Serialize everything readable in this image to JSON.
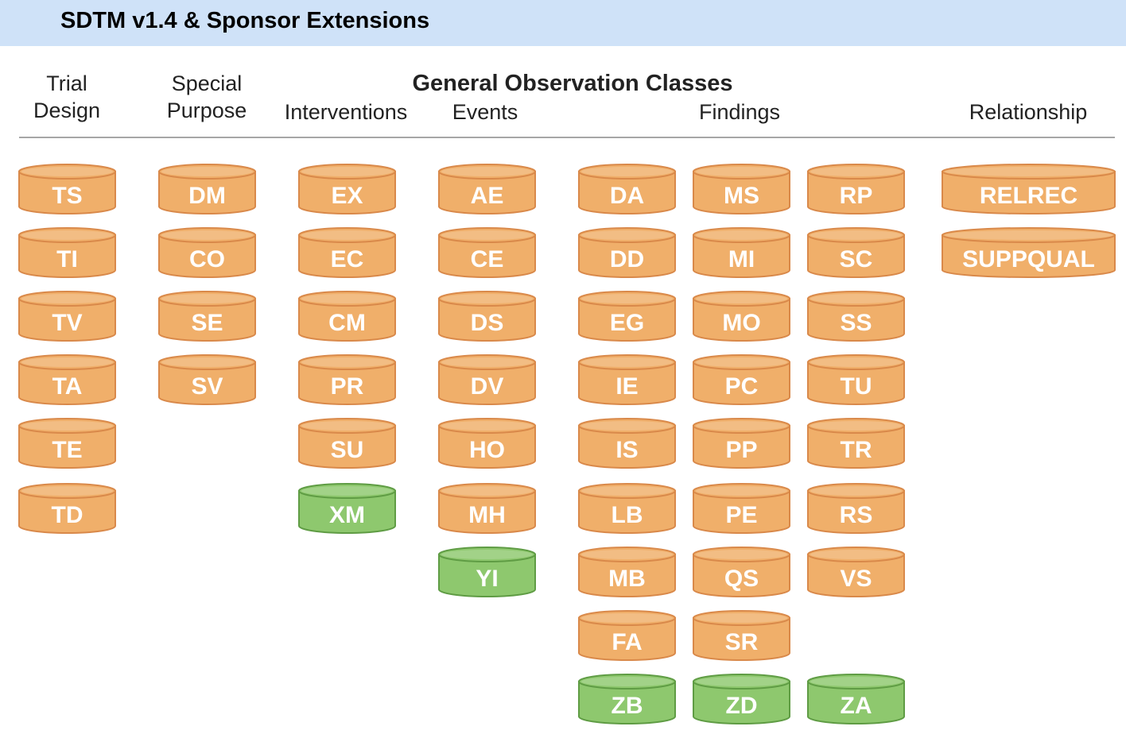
{
  "title": "SDTM v1.4 & Sponsor Extensions",
  "headers": {
    "trial_design": [
      "Trial",
      "Design"
    ],
    "special_purpose": [
      "Special",
      "Purpose"
    ],
    "general": "General Observation Classes",
    "interventions": "Interventions",
    "events": "Events",
    "findings": "Findings",
    "relationship": "Relationship"
  },
  "colors": {
    "standard": "#f0af6a",
    "standard_border": "#d9894a",
    "extension": "#8ec86e",
    "extension_border": "#5f9c44"
  },
  "columns": [
    {
      "group": "Trial Design",
      "domains": [
        {
          "code": "TS",
          "type": "standard"
        },
        {
          "code": "TI",
          "type": "standard"
        },
        {
          "code": "TV",
          "type": "standard"
        },
        {
          "code": "TA",
          "type": "standard"
        },
        {
          "code": "TE",
          "type": "standard"
        },
        {
          "code": "TD",
          "type": "standard"
        }
      ]
    },
    {
      "group": "Special Purpose",
      "domains": [
        {
          "code": "DM",
          "type": "standard"
        },
        {
          "code": "CO",
          "type": "standard"
        },
        {
          "code": "SE",
          "type": "standard"
        },
        {
          "code": "SV",
          "type": "standard"
        }
      ]
    },
    {
      "group": "Interventions",
      "domains": [
        {
          "code": "EX",
          "type": "standard"
        },
        {
          "code": "EC",
          "type": "standard"
        },
        {
          "code": "CM",
          "type": "standard"
        },
        {
          "code": "PR",
          "type": "standard"
        },
        {
          "code": "SU",
          "type": "standard"
        },
        {
          "code": "XM",
          "type": "extension"
        }
      ]
    },
    {
      "group": "Events",
      "domains": [
        {
          "code": "AE",
          "type": "standard"
        },
        {
          "code": "CE",
          "type": "standard"
        },
        {
          "code": "DS",
          "type": "standard"
        },
        {
          "code": "DV",
          "type": "standard"
        },
        {
          "code": "HO",
          "type": "standard"
        },
        {
          "code": "MH",
          "type": "standard"
        },
        {
          "code": "YI",
          "type": "extension"
        }
      ]
    },
    {
      "group": "Findings",
      "domains": [
        {
          "code": "DA",
          "type": "standard"
        },
        {
          "code": "DD",
          "type": "standard"
        },
        {
          "code": "EG",
          "type": "standard"
        },
        {
          "code": "IE",
          "type": "standard"
        },
        {
          "code": "IS",
          "type": "standard"
        },
        {
          "code": "LB",
          "type": "standard"
        },
        {
          "code": "MB",
          "type": "standard"
        },
        {
          "code": "FA",
          "type": "standard"
        },
        {
          "code": "ZB",
          "type": "extension"
        }
      ]
    },
    {
      "group": "Findings",
      "domains": [
        {
          "code": "MS",
          "type": "standard"
        },
        {
          "code": "MI",
          "type": "standard"
        },
        {
          "code": "MO",
          "type": "standard"
        },
        {
          "code": "PC",
          "type": "standard"
        },
        {
          "code": "PP",
          "type": "standard"
        },
        {
          "code": "PE",
          "type": "standard"
        },
        {
          "code": "QS",
          "type": "standard"
        },
        {
          "code": "SR",
          "type": "standard"
        },
        {
          "code": "ZD",
          "type": "extension"
        }
      ]
    },
    {
      "group": "Findings",
      "domains": [
        {
          "code": "RP",
          "type": "standard"
        },
        {
          "code": "SC",
          "type": "standard"
        },
        {
          "code": "SS",
          "type": "standard"
        },
        {
          "code": "TU",
          "type": "standard"
        },
        {
          "code": "TR",
          "type": "standard"
        },
        {
          "code": "RS",
          "type": "standard"
        },
        {
          "code": "VS",
          "type": "standard"
        },
        {
          "code": null,
          "type": "empty"
        },
        {
          "code": "ZA",
          "type": "extension"
        }
      ]
    },
    {
      "group": "Relationship",
      "domains": [
        {
          "code": "RELREC",
          "type": "standard"
        },
        {
          "code": "SUPPQUAL",
          "type": "standard"
        }
      ]
    }
  ]
}
